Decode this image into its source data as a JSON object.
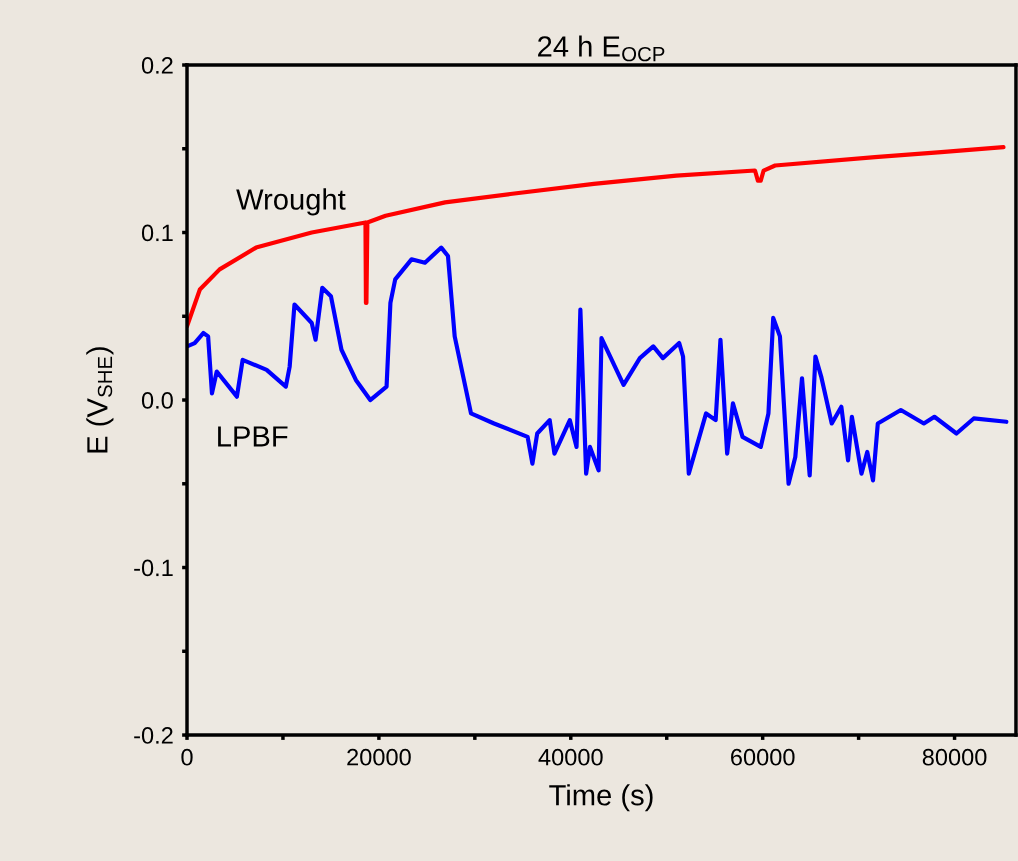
{
  "chart_data": {
    "type": "line",
    "title": "24 h E$_{OCP}$",
    "xlabel": "Time (s)",
    "ylabel": "E (V$_{SHE}$)",
    "xlim": [
      0,
      86400
    ],
    "ylim": [
      -0.2,
      0.2
    ],
    "xticks": [
      0,
      {
        "value": 10000,
        "label": null
      },
      20000,
      {
        "value": 30000,
        "label": null
      },
      40000,
      {
        "value": 50000,
        "label": null
      },
      60000,
      {
        "value": 70000,
        "label": null
      },
      80000
    ],
    "yticks": [
      {
        "value": -0.2,
        "label": "-0.2"
      },
      {
        "value": -0.15,
        "label": null
      },
      {
        "value": -0.1,
        "label": "-0.1"
      },
      {
        "value": -0.05,
        "label": null
      },
      {
        "value": 0.0,
        "label": "0.0"
      },
      {
        "value": 0.05,
        "label": null
      },
      {
        "value": 0.1,
        "label": "0.1"
      },
      {
        "value": 0.15,
        "label": null
      },
      {
        "value": 0.2,
        "label": "0.2"
      }
    ],
    "grid": false,
    "legend": false,
    "series": [
      {
        "name": "Wrought",
        "color": "#ff0000",
        "x": [
          0,
          1340,
          3400,
          7200,
          13000,
          18600,
          18650,
          18700,
          18800,
          20700,
          26900,
          33700,
          42400,
          51000,
          59200,
          59500,
          59800,
          60100,
          61300,
          71700,
          78600,
          85100
        ],
        "values": [
          0.044,
          0.066,
          0.078,
          0.091,
          0.1,
          0.106,
          0.058,
          0.058,
          0.106,
          0.11,
          0.118,
          0.123,
          0.129,
          0.134,
          0.137,
          0.131,
          0.131,
          0.137,
          0.14,
          0.145,
          0.148,
          0.151
        ]
      },
      {
        "name": "LPBF",
        "color": "#0000ff",
        "x": [
          0,
          800,
          1700,
          2200,
          2600,
          3100,
          5200,
          5800,
          8300,
          10300,
          10700,
          11200,
          13000,
          13400,
          14100,
          15000,
          16100,
          17600,
          19100,
          20800,
          21200,
          21700,
          23400,
          24800,
          26500,
          27200,
          27900,
          29600,
          32000,
          35500,
          36000,
          36500,
          37800,
          38300,
          39900,
          40600,
          41000,
          41600,
          42000,
          42900,
          43200,
          45500,
          47200,
          48600,
          49600,
          51300,
          51700,
          52300,
          54100,
          55100,
          55600,
          56300,
          56900,
          57900,
          59800,
          60600,
          61100,
          61800,
          62700,
          63400,
          64100,
          64900,
          65500,
          66100,
          67200,
          68200,
          68900,
          69300,
          70300,
          70900,
          71500,
          72000,
          74400,
          76800,
          77900,
          80200,
          82000,
          85400
        ],
        "values": [
          0.032,
          0.034,
          0.04,
          0.038,
          0.004,
          0.017,
          0.002,
          0.024,
          0.018,
          0.008,
          0.02,
          0.057,
          0.046,
          0.036,
          0.067,
          0.062,
          0.03,
          0.012,
          0.0,
          0.008,
          0.058,
          0.072,
          0.084,
          0.082,
          0.091,
          0.086,
          0.038,
          -0.008,
          -0.014,
          -0.022,
          -0.038,
          -0.02,
          -0.012,
          -0.032,
          -0.012,
          -0.028,
          0.054,
          -0.044,
          -0.028,
          -0.042,
          0.037,
          0.009,
          0.025,
          0.032,
          0.025,
          0.034,
          0.026,
          -0.044,
          -0.008,
          -0.012,
          0.036,
          -0.032,
          -0.002,
          -0.022,
          -0.028,
          -0.008,
          0.049,
          0.038,
          -0.05,
          -0.034,
          0.013,
          -0.045,
          0.026,
          0.014,
          -0.014,
          -0.004,
          -0.036,
          -0.01,
          -0.044,
          -0.031,
          -0.048,
          -0.014,
          -0.006,
          -0.014,
          -0.01,
          -0.02,
          -0.011,
          -0.013
        ]
      }
    ]
  }
}
